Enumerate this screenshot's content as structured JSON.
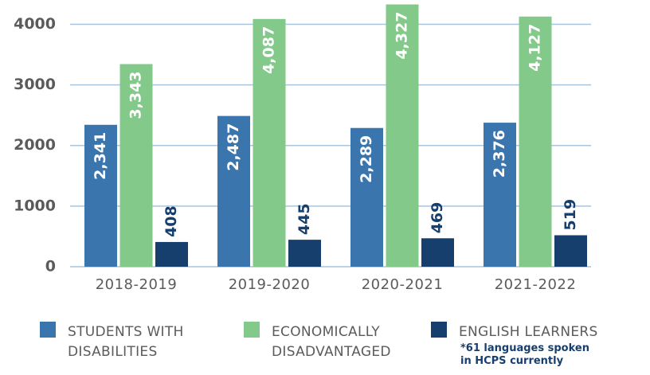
{
  "chart_data": {
    "type": "bar",
    "categories": [
      "2018-2019",
      "2019-2020",
      "2020-2021",
      "2021-2022"
    ],
    "series": [
      {
        "name": "STUDENTS WITH DISABILITIES",
        "color": "#3a76ad",
        "values": [
          2341,
          2487,
          2289,
          2376
        ],
        "value_labels": [
          "2,341",
          "2,487",
          "2,289",
          "2,376"
        ]
      },
      {
        "name": "ECONOMICALLY DISADVANTAGED",
        "color": "#82c98a",
        "values": [
          3343,
          4087,
          4327,
          4127
        ],
        "value_labels": [
          "3,343",
          "4,087",
          "4,327",
          "4,127"
        ]
      },
      {
        "name": "ENGLISH LEARNERS",
        "color": "#173f6e",
        "values": [
          408,
          445,
          469,
          519
        ]
      }
    ],
    "note": "*61 languages spoken in HCPS currently",
    "ylim": [
      0,
      4400
    ],
    "yticks": [
      0,
      1000,
      2000,
      3000,
      4000
    ],
    "grid": true
  }
}
